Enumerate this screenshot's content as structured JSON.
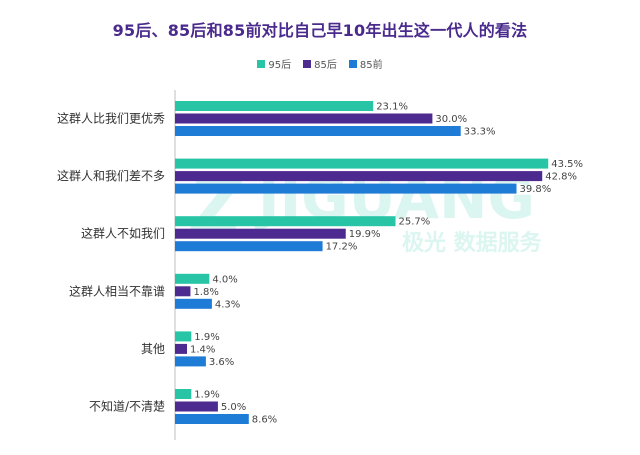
{
  "title": "95后、85后和85前对比自己早10年出生这一代人的看法",
  "legend": {
    "s0": "95后",
    "s1": "85后",
    "s2": "85前"
  },
  "watermark": {
    "brand": "JIGUANG",
    "cn": "极光 数据服务"
  },
  "colors": {
    "s0": "#27c4a6",
    "s1": "#4d2a8f",
    "s2": "#1e7bd6"
  },
  "chart_data": {
    "type": "bar",
    "orientation": "horizontal",
    "title": "95后、85后和85前对比自己早10年出生这一代人的看法",
    "categories": [
      "这群人比我们更优秀",
      "这群人和我们差不多",
      "这群人不如我们",
      "这群人相当不靠谱",
      "其他",
      "不知道/不清楚"
    ],
    "series": [
      {
        "name": "95后",
        "values": [
          23.1,
          43.5,
          25.7,
          4.0,
          1.9,
          1.9
        ],
        "labels": [
          "23.1%",
          "43.5%",
          "25.7%",
          "4.0%",
          "1.9%",
          "1.9%"
        ]
      },
      {
        "name": "85后",
        "values": [
          30.0,
          42.8,
          19.9,
          1.8,
          1.4,
          5.0
        ],
        "labels": [
          "30.0%",
          "42.8%",
          "19.9%",
          "1.8%",
          "1.4%",
          "5.0%"
        ]
      },
      {
        "name": "85前",
        "values": [
          33.3,
          39.8,
          17.2,
          4.3,
          3.6,
          8.6
        ],
        "labels": [
          "33.3%",
          "39.8%",
          "17.2%",
          "4.3%",
          "3.6%",
          "8.6%"
        ]
      }
    ],
    "xlim": [
      0,
      45
    ],
    "legend_position": "top-center",
    "grid": false
  }
}
